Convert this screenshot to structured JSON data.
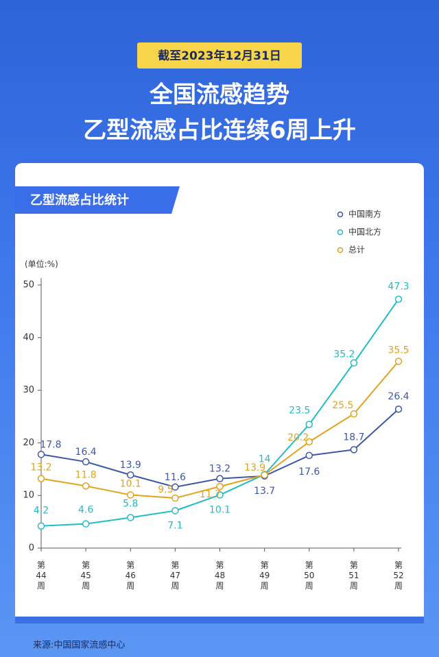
{
  "header": {
    "badge": "截至2023年12月31日",
    "title_line1": "全国流感趋势",
    "title_line2": "乙型流感占比连续6周上升"
  },
  "section_title": "乙型流感占比统计",
  "chart_data": {
    "type": "line",
    "unit_label": "(单位:%)",
    "categories": [
      "第44周",
      "第45周",
      "第46周",
      "第47周",
      "第48周",
      "第49周",
      "第50周",
      "第51周",
      "第52周"
    ],
    "series": [
      {
        "name": "中国南方",
        "color": "#3c56a8",
        "values": [
          17.8,
          16.4,
          13.9,
          11.6,
          13.2,
          13.7,
          17.6,
          18.7,
          26.4
        ]
      },
      {
        "name": "中国北方",
        "color": "#1fbcc6",
        "values": [
          4.2,
          4.6,
          5.8,
          7.1,
          10.1,
          14,
          23.5,
          35.2,
          47.3
        ]
      },
      {
        "name": "总计",
        "color": "#e3a21a",
        "values": [
          13.2,
          11.8,
          10.1,
          9.5,
          11.7,
          13.9,
          20.2,
          25.5,
          35.5
        ]
      }
    ],
    "ylim": [
      0,
      50
    ],
    "yticks": [
      0,
      10,
      20,
      30,
      40,
      50
    ],
    "legend": "top-right"
  },
  "source": "来源:中国国家流感中心"
}
